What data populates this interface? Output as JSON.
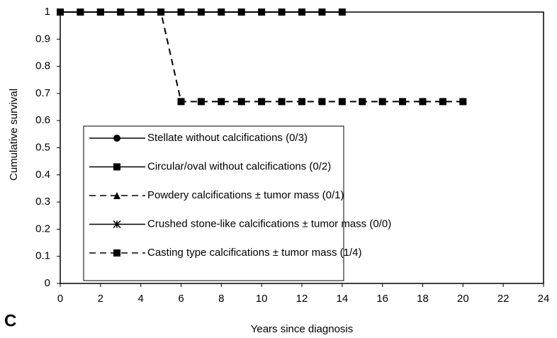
{
  "chart_data": {
    "type": "line",
    "xlabel": "Years since diagnosis",
    "ylabel": "Cumulative survival",
    "annotation": "C",
    "xlim": [
      0,
      24
    ],
    "xticks": [
      0,
      2,
      4,
      6,
      8,
      10,
      12,
      14,
      16,
      18,
      20,
      22,
      24
    ],
    "ylim": [
      0,
      1
    ],
    "yticks": [
      0,
      0.1,
      0.2,
      0.3,
      0.4,
      0.5,
      0.6,
      0.7,
      0.8,
      0.9,
      1
    ],
    "grid": false,
    "series": [
      {
        "name": "Stellate without calcifications (0/3)",
        "color": "#000000",
        "dash": "solid",
        "marker": "circle",
        "x": [],
        "values": []
      },
      {
        "name": "Circular/oval without calcifications (0/2)",
        "color": "#000000",
        "dash": "solid",
        "marker": "square",
        "x": [
          0,
          1,
          2,
          3,
          4,
          5,
          6,
          7,
          8,
          9,
          10,
          11,
          12,
          13,
          14
        ],
        "values": [
          1,
          1,
          1,
          1,
          1,
          1,
          1,
          1,
          1,
          1,
          1,
          1,
          1,
          1,
          1
        ]
      },
      {
        "name": "Powdery calcifications ± tumor mass (0/1)",
        "color": "#000000",
        "dash": "dashed",
        "marker": "triangle",
        "x": [],
        "values": []
      },
      {
        "name": "Crushed stone-like calcifications ± tumor mass (0/0)",
        "color": "#000000",
        "dash": "solid",
        "marker": "asterisk",
        "x": [],
        "values": []
      },
      {
        "name": "Casting type calcifications ± tumor mass (1/4)",
        "color": "#000000",
        "dash": "dashed",
        "marker": "square",
        "x": [
          0,
          1,
          2,
          3,
          4,
          5,
          6,
          7,
          8,
          9,
          10,
          11,
          12,
          13,
          14,
          15,
          16,
          17,
          18,
          19,
          20
        ],
        "values": [
          1,
          1,
          1,
          1,
          1,
          1,
          0.67,
          0.67,
          0.67,
          0.67,
          0.67,
          0.67,
          0.67,
          0.67,
          0.67,
          0.67,
          0.67,
          0.67,
          0.67,
          0.67,
          0.67
        ]
      }
    ]
  }
}
